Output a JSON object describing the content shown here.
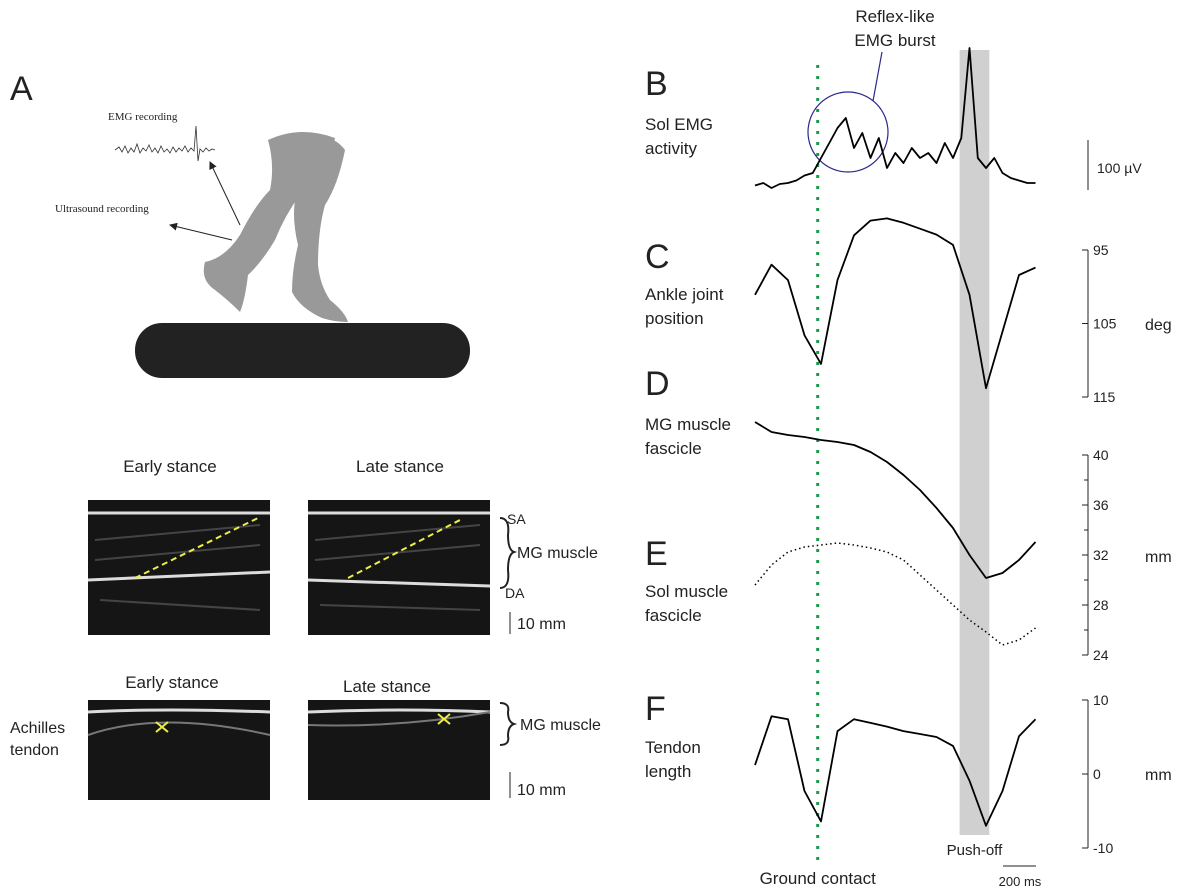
{
  "figure": {
    "panel": "A",
    "emg_recording": "EMG recording",
    "ultrasound_recording": "Ultrasound recording",
    "muscle": {
      "early": "Early stance",
      "late": "Late stance",
      "sa": "SA",
      "mg": "MG muscle",
      "da": "DA",
      "scale": "10 mm"
    },
    "tendon": {
      "early": "Early stance",
      "late": "Late stance",
      "achilles": [
        "Achilles",
        "tendon"
      ],
      "mg": "MG muscle",
      "scale": "10 mm"
    }
  },
  "timeline": {
    "ground_contact": {
      "label": "Ground contact",
      "t": 380
    },
    "push_off": {
      "label": "Push-off",
      "t": [
        1240,
        1420
      ]
    },
    "scale_bar": {
      "value": 200,
      "label": "200 ms"
    }
  },
  "chart_data": [
    {
      "type": "line",
      "panel": "B",
      "title_lines": [
        "Sol EMG",
        "activity"
      ],
      "color": "#000000",
      "x": [
        0,
        50,
        100,
        150,
        200,
        250,
        300,
        350,
        400,
        450,
        500,
        550,
        600,
        650,
        700,
        750,
        800,
        850,
        900,
        950,
        1000,
        1050,
        1100,
        1150,
        1200,
        1250,
        1300,
        1350,
        1400,
        1450,
        1500,
        1550,
        1600,
        1650,
        1700
      ],
      "values": [
        5,
        10,
        0,
        8,
        10,
        15,
        25,
        30,
        60,
        90,
        120,
        140,
        80,
        110,
        60,
        100,
        40,
        70,
        50,
        80,
        60,
        70,
        50,
        90,
        60,
        100,
        280,
        60,
        40,
        60,
        30,
        20,
        15,
        10,
        10
      ],
      "scale_bar": {
        "value": 100,
        "label": "100 µV"
      },
      "annotation": {
        "lines": [
          "Reflex-like",
          "EMG burst"
        ],
        "color": "#2a2a8a"
      }
    },
    {
      "type": "line",
      "panel": "C",
      "title_lines": [
        "Ankle joint",
        "position"
      ],
      "color": "#000000",
      "ylim": [
        115,
        95
      ],
      "yticks": [
        95,
        105,
        115
      ],
      "y_label": "deg",
      "x": [
        0,
        100,
        200,
        300,
        400,
        500,
        600,
        700,
        800,
        900,
        1000,
        1100,
        1200,
        1300,
        1400,
        1500,
        1600,
        1700
      ],
      "values": [
        101.1,
        97.0,
        99.1,
        106.6,
        110.5,
        99.1,
        93.0,
        91.0,
        90.7,
        91.3,
        92.1,
        92.9,
        94.3,
        101.1,
        113.8,
        106.1,
        98.4,
        97.4
      ]
    },
    {
      "type": "line",
      "ylim": [
        24,
        40
      ],
      "yticks": [
        24,
        28,
        32,
        36,
        40
      ],
      "minor_yticks": [
        26,
        30,
        34,
        38
      ],
      "y_label": "mm",
      "x": [
        0,
        100,
        200,
        300,
        400,
        500,
        600,
        700,
        800,
        900,
        1000,
        1100,
        1200,
        1300,
        1400,
        1500,
        1600,
        1700
      ],
      "series": [
        {
          "panel": "D",
          "name_lines": [
            "MG muscle",
            "fascicle"
          ],
          "color": "#000000",
          "style": "solid",
          "values": [
            42.64,
            41.84,
            41.6,
            41.44,
            41.2,
            41.04,
            40.8,
            40.24,
            39.44,
            38.4,
            37.2,
            35.76,
            34.16,
            32.0,
            30.16,
            30.56,
            31.6,
            33.04
          ]
        },
        {
          "panel": "E",
          "name_lines": [
            "Sol muscle",
            "fascicle"
          ],
          "color": "#000000",
          "style": "dotted",
          "values": [
            29.6,
            31.2,
            32.24,
            32.64,
            32.8,
            32.96,
            32.8,
            32.56,
            32.24,
            31.6,
            30.4,
            29.2,
            28.0,
            26.8,
            25.84,
            24.8,
            25.2,
            26.16
          ]
        }
      ]
    },
    {
      "type": "line",
      "panel": "F",
      "title_lines": [
        "Tendon",
        "length"
      ],
      "color": "#000000",
      "ylim": [
        -10,
        10
      ],
      "yticks": [
        -10,
        0,
        10
      ],
      "y_label": "mm",
      "x": [
        0,
        100,
        200,
        300,
        400,
        500,
        600,
        700,
        800,
        900,
        1000,
        1100,
        1200,
        1300,
        1400,
        1500,
        1600,
        1700
      ],
      "values": [
        1.2,
        7.8,
        7.4,
        -2.3,
        -6.4,
        5.8,
        7.4,
        6.9,
        6.4,
        5.8,
        5.4,
        5.0,
        3.8,
        -0.9,
        -7.0,
        -2.3,
        5.1,
        7.4
      ]
    }
  ]
}
